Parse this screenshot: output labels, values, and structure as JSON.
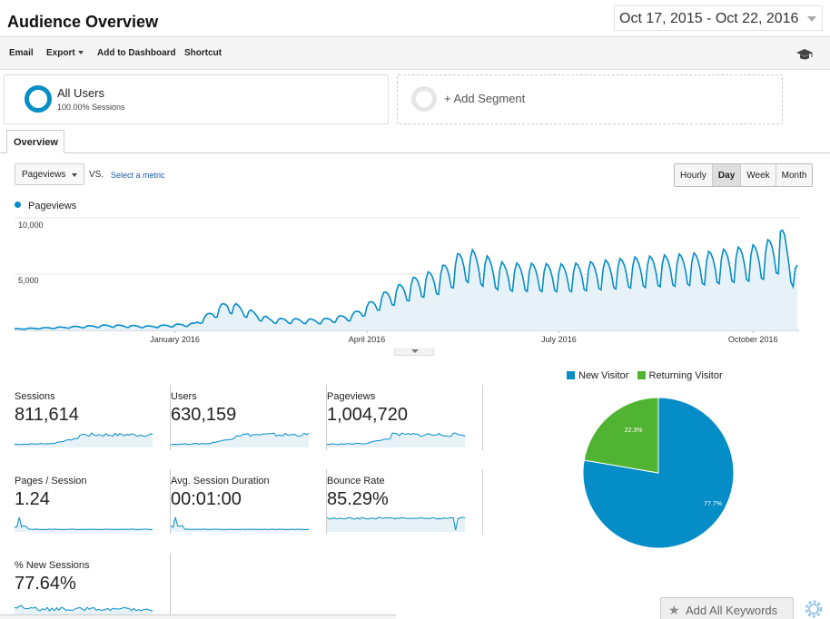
{
  "header": {
    "title": "Audience Overview",
    "date_range": "Oct 17, 2015 - Oct 22, 2016"
  },
  "toolbar": {
    "email": "Email",
    "export": "Export",
    "add_to_dashboard": "Add to Dashboard",
    "shortcut": "Shortcut",
    "icon": "graduation-cap-icon"
  },
  "segments": {
    "all_users": {
      "label": "All Users",
      "sub": "100.00% Sessions"
    },
    "add": "+ Add Segment"
  },
  "tabs": {
    "overview": "Overview"
  },
  "controls": {
    "metric": "Pageviews",
    "vs": "VS.",
    "select_metric": "Select a metric",
    "granularity": [
      "Hourly",
      "Day",
      "Week",
      "Month"
    ],
    "active_granularity": "Day"
  },
  "colors": {
    "primary": "#058dc7",
    "secondary": "#50b432",
    "fill": "#e6f2f8"
  },
  "chart_data": [
    {
      "type": "area",
      "series": [
        {
          "name": "Pageviews"
        }
      ],
      "ylim": [
        0,
        10000
      ],
      "ytick_labels": [
        "10,000",
        "5,000"
      ],
      "xtick_labels": [
        "January 2016",
        "April 2016",
        "July 2016",
        "October 2016"
      ],
      "x_start": "Oct 17, 2015",
      "x_end": "Oct 22, 2016",
      "weekly_peaks": [
        {
          "date": "2015-10-17",
          "value": 150
        },
        {
          "date": "2015-11-01",
          "value": 250
        },
        {
          "date": "2015-12-01",
          "value": 500
        },
        {
          "date": "2015-12-20",
          "value": 400
        },
        {
          "date": "2016-01-10",
          "value": 650
        },
        {
          "date": "2016-01-26",
          "value": 2700
        },
        {
          "date": "2016-02-15",
          "value": 1100
        },
        {
          "date": "2016-03-10",
          "value": 1000
        },
        {
          "date": "2016-03-25",
          "value": 1500
        },
        {
          "date": "2016-04-10",
          "value": 3500
        },
        {
          "date": "2016-04-25",
          "value": 4900
        },
        {
          "date": "2016-05-05",
          "value": 5500
        },
        {
          "date": "2016-05-18",
          "value": 7400
        },
        {
          "date": "2016-06-05",
          "value": 6000
        },
        {
          "date": "2016-07-05",
          "value": 5900
        },
        {
          "date": "2016-08-05",
          "value": 6500
        },
        {
          "date": "2016-09-05",
          "value": 6900
        },
        {
          "date": "2016-10-05",
          "value": 7700
        },
        {
          "date": "2016-10-15",
          "value": 8900
        },
        {
          "date": "2016-10-22",
          "value": 5800
        }
      ]
    },
    {
      "type": "pie",
      "labels": [
        "New Visitor",
        "Returning Visitor"
      ],
      "values": [
        77.7,
        22.3
      ],
      "value_labels": [
        "77.7%",
        "22.3%"
      ]
    }
  ],
  "metrics": [
    {
      "label": "Sessions",
      "value": "811,614",
      "sparkline": "growth"
    },
    {
      "label": "Users",
      "value": "630,159",
      "sparkline": "growth"
    },
    {
      "label": "Pageviews",
      "value": "1,004,720",
      "sparkline": "growth"
    },
    {
      "label": "Pages / Session",
      "value": "1.24",
      "sparkline": "early-spike"
    },
    {
      "label": "Avg. Session Duration",
      "value": "00:01:00",
      "sparkline": "early-spike"
    },
    {
      "label": "Bounce Rate",
      "value": "85.29%",
      "sparkline": "high-flat"
    },
    {
      "label": "% New Sessions",
      "value": "77.64%",
      "sparkline": "flat-noisy"
    }
  ],
  "buttons": {
    "add_all_keywords": "Add All Keywords"
  }
}
